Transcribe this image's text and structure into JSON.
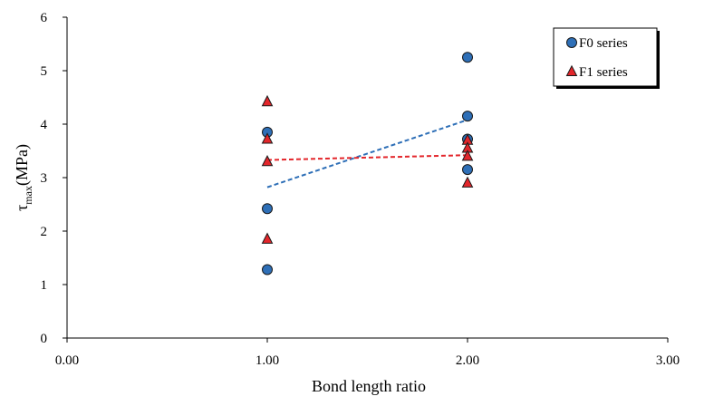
{
  "chart_data": {
    "type": "scatter",
    "title": "",
    "xlabel": "Bond length ratio",
    "ylabel": {
      "symbol": "τ",
      "subscript": "max",
      "unit": "(MPa)"
    },
    "xlim": [
      0,
      3
    ],
    "ylim": [
      0,
      6
    ],
    "xticks": [
      0,
      1,
      2,
      3
    ],
    "xtick_labels": [
      "0.00",
      "1.00",
      "2.00",
      "3.00"
    ],
    "yticks": [
      0,
      1,
      2,
      3,
      4,
      5,
      6
    ],
    "ytick_labels": [
      "0",
      "1",
      "2",
      "3",
      "4",
      "5",
      "6"
    ],
    "grid": false,
    "legend_position": "top-right",
    "series": [
      {
        "name": "F0 series",
        "marker": "circle",
        "color": "#2e6fb7",
        "points": [
          {
            "x": 1.0,
            "y": 3.85
          },
          {
            "x": 1.0,
            "y": 2.42
          },
          {
            "x": 1.0,
            "y": 1.28
          },
          {
            "x": 2.0,
            "y": 5.25
          },
          {
            "x": 2.0,
            "y": 4.15
          },
          {
            "x": 2.0,
            "y": 3.72
          },
          {
            "x": 2.0,
            "y": 3.15
          }
        ],
        "trendline": {
          "style": "dashed",
          "from": {
            "x": 1.0,
            "y": 2.82
          },
          "to": {
            "x": 2.0,
            "y": 4.08
          }
        }
      },
      {
        "name": "F1 series",
        "marker": "triangle",
        "color": "#e3262b",
        "points": [
          {
            "x": 1.0,
            "y": 4.42
          },
          {
            "x": 1.0,
            "y": 3.72
          },
          {
            "x": 1.0,
            "y": 3.3
          },
          {
            "x": 1.0,
            "y": 1.85
          },
          {
            "x": 2.0,
            "y": 3.7
          },
          {
            "x": 2.0,
            "y": 3.55
          },
          {
            "x": 2.0,
            "y": 3.4
          },
          {
            "x": 2.0,
            "y": 2.9
          }
        ],
        "trendline": {
          "style": "dashed",
          "from": {
            "x": 1.0,
            "y": 3.33
          },
          "to": {
            "x": 2.0,
            "y": 3.42
          }
        }
      }
    ]
  }
}
